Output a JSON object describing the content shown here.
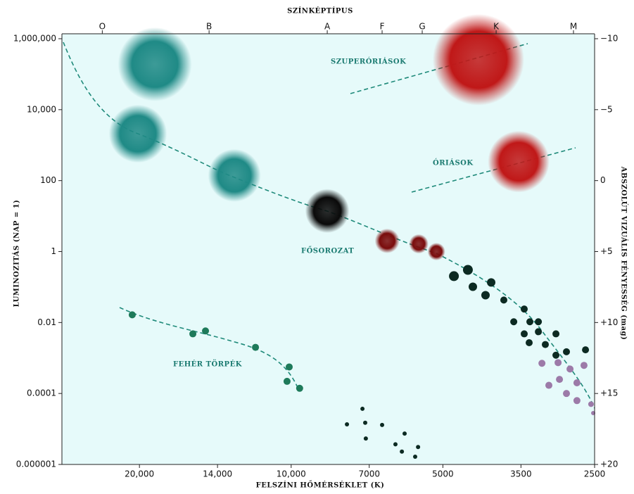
{
  "chart_data": {
    "type": "scatter",
    "title": "SZÍNKÉPTÍPUS",
    "x_label": "FELSZÍNI HŐMÉRSÉKLET (K)",
    "y_label": "LUMINOZITÁS (NAP = 1)",
    "y2_label": "ABSZOLÚT VIZUÁLIS FÉNYESSÉG (mag)",
    "annotations": [
      "SZUPERÓRIÁSOK",
      "ÓRIÁSOK",
      "FŐSOROZAT",
      "FEHÉR TÖRPÉK"
    ],
    "xscale": "log",
    "yscale": "log",
    "xlim": [
      28500,
      2500
    ],
    "ylim": [
      1e-06,
      1000000
    ],
    "y2lim": [
      -10,
      20
    ],
    "y2_reversed": true,
    "xticks": [
      {
        "value": 20000,
        "label": "20,000"
      },
      {
        "value": 14000,
        "label": "14,000"
      },
      {
        "value": 10000,
        "label": "10,000"
      },
      7000,
      5000,
      3500,
      2500
    ],
    "x2ticks": [
      {
        "value": 23700,
        "label": "O"
      },
      {
        "value": 14550,
        "label": "B"
      },
      {
        "value": 8480,
        "label": "A"
      },
      {
        "value": 6600,
        "label": "F"
      },
      {
        "value": 5495,
        "label": "G"
      },
      {
        "value": 3920,
        "label": "K"
      },
      {
        "value": 2753,
        "label": "M"
      }
    ],
    "yticks": [
      {
        "value": 1000000,
        "label": "1,000,000"
      },
      {
        "value": 10000,
        "label": "10,000"
      },
      100,
      1,
      0.01,
      0.0001,
      1e-06
    ],
    "y2ticks": [
      {
        "value": -10,
        "label": "−10"
      },
      {
        "value": -5,
        "label": "−5"
      },
      0,
      {
        "value": 5,
        "label": "+5"
      },
      {
        "value": 10,
        "label": "+10"
      },
      {
        "value": 15,
        "label": "+15"
      },
      {
        "value": 20,
        "label": "+20"
      }
    ],
    "background": "#e6fafa",
    "series": [
      {
        "color": "#1f8a86",
        "x": [
          18640,
          20140,
          12960
        ],
        "values": [
          190000,
          2100,
          140
        ],
        "sizes": [
          42,
          33,
          30
        ]
      },
      {
        "color": "#0a0a0a",
        "x": [
          8480
        ],
        "values": [
          14
        ],
        "sizes": [
          25
        ]
      },
      {
        "color": "#7a0c0c",
        "x": [
          6450,
          5583,
          5150
        ],
        "values": [
          2.0,
          1.65,
          1.0
        ],
        "sizes": [
          14,
          11,
          10
        ]
      },
      {
        "color": "#c01818",
        "x": [
          4250,
          3537
        ],
        "values": [
          255000,
          343
        ],
        "sizes": [
          52,
          35
        ]
      },
      {
        "color": "#0c2a22",
        "x": [
          4754,
          4460,
          4360,
          4010,
          4115,
          3785,
          3448,
          3617,
          3360,
          3232,
          3448,
          3232,
          3371,
          2983,
          3131,
          2843,
          2606,
          2983
        ],
        "values": [
          0.203,
          0.305,
          0.102,
          0.135,
          0.059,
          0.043,
          0.024,
          0.0105,
          0.0105,
          0.0105,
          0.0048,
          0.0055,
          0.0027,
          0.0048,
          0.0024,
          0.0015,
          0.0017,
          0.0012
        ],
        "sizes": [
          7,
          7,
          6,
          6,
          6,
          5,
          5,
          5,
          5,
          5,
          5,
          5,
          5,
          5,
          5,
          5,
          5,
          5
        ]
      },
      {
        "color": "#9c7aa8",
        "x": [
          3180,
          2954,
          2797,
          2624,
          2935,
          2710,
          3081,
          2843,
          2710,
          2541,
          2516
        ],
        "values": [
          0.00071,
          0.00074,
          0.00049,
          0.00062,
          0.00025,
          0.0002,
          0.00017,
          0.0001,
          6.3e-05,
          5e-05,
          2.8e-05
        ],
        "sizes": [
          5,
          5,
          5,
          5,
          5,
          5,
          5,
          5,
          5,
          4,
          3
        ]
      },
      {
        "color": "#1e7a5a",
        "x": [
          20670,
          15670,
          14790,
          11770,
          10090,
          10190,
          9620
        ],
        "values": [
          0.0165,
          0.0048,
          0.0058,
          0.002,
          0.00056,
          0.00022,
          0.00014
        ],
        "sizes": [
          5,
          5,
          5,
          5,
          5,
          5,
          5
        ]
      },
      {
        "color": "#0c2a22",
        "x": [
          7750,
          7220,
          7130,
          7110,
          6600,
          6210,
          5955,
          6030,
          5675,
          5600
        ],
        "values": [
          1.35e-05,
          3.7e-05,
          1.5e-05,
          5.4e-06,
          1.3e-05,
          3.7e-06,
          7.4e-06,
          2.3e-06,
          1.65e-06,
          3.1e-06
        ],
        "sizes": [
          3,
          3,
          3,
          3,
          3,
          3,
          3,
          3,
          3,
          3
        ]
      }
    ]
  }
}
